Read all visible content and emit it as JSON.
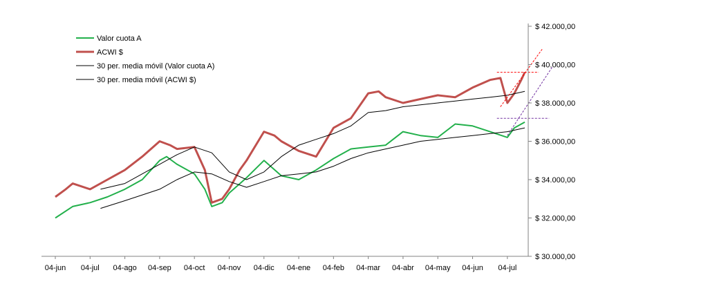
{
  "chart_data": {
    "type": "line",
    "title": "",
    "xlabel": "",
    "ylabel": "",
    "x_tick_labels": [
      "04-jun",
      "04-jul",
      "04-ago",
      "04-sep",
      "04-oct",
      "04-nov",
      "04-dic",
      "04-ene",
      "04-feb",
      "04-mar",
      "04-abr",
      "04-may",
      "04-jun",
      "04-jul"
    ],
    "y_tick_labels": [
      "$ 30.000,00",
      "$ 32.000,00",
      "$ 34.000,00",
      "$ 36.000,00",
      "$ 38.000,00",
      "$ 40.000,00",
      "$ 42.000,00"
    ],
    "y_ticks": [
      30000,
      32000,
      34000,
      36000,
      38000,
      40000,
      42000
    ],
    "ylim": [
      30000,
      42000
    ],
    "xlim": [
      0,
      13.6
    ],
    "y_axis_position": "right",
    "grid": false,
    "legend_position": "top-left",
    "series": [
      {
        "name": "Valor cuota A",
        "color": "#22b04b",
        "style": "line",
        "x": [
          0,
          0.5,
          1,
          1.5,
          2,
          2.5,
          3,
          3.2,
          3.5,
          4,
          4.3,
          4.5,
          4.8,
          5,
          5.5,
          6,
          6.5,
          7,
          7.5,
          8,
          8.5,
          9,
          9.5,
          10,
          10.5,
          11,
          11.5,
          12,
          12.5,
          13,
          13.2,
          13.5
        ],
        "values": [
          32000,
          32600,
          32800,
          33100,
          33500,
          34000,
          35000,
          35200,
          34800,
          34300,
          33500,
          32600,
          32800,
          33300,
          34100,
          35000,
          34200,
          34000,
          34500,
          35100,
          35600,
          35700,
          35800,
          36500,
          36300,
          36200,
          36900,
          36800,
          36500,
          36200,
          36700,
          37000
        ]
      },
      {
        "name": "ACWI $",
        "color": "#c0504d",
        "style": "line",
        "x": [
          0,
          0.3,
          0.5,
          1,
          1.5,
          2,
          2.5,
          3,
          3.3,
          3.5,
          4,
          4.3,
          4.5,
          4.8,
          5,
          5.3,
          5.5,
          6,
          6.3,
          6.5,
          7,
          7.5,
          8,
          8.5,
          9,
          9.3,
          9.5,
          10,
          10.5,
          11,
          11.5,
          12,
          12.5,
          12.8,
          13,
          13.2,
          13.4,
          13.5
        ],
        "values": [
          33100,
          33500,
          33800,
          33500,
          34000,
          34500,
          35200,
          36000,
          35800,
          35600,
          35700,
          34500,
          32800,
          33000,
          33500,
          34500,
          35000,
          36500,
          36300,
          36000,
          35500,
          35200,
          36700,
          37200,
          38500,
          38600,
          38300,
          38000,
          38200,
          38400,
          38300,
          38800,
          39200,
          39300,
          38000,
          38500,
          39200,
          39600
        ]
      },
      {
        "name": "30 per. media móvil (Valor cuota A)",
        "color": "#000000",
        "style": "thin",
        "x": [
          1.3,
          2,
          3,
          3.5,
          4,
          4.5,
          5,
          5.5,
          6,
          6.5,
          7,
          7.5,
          8,
          8.5,
          9,
          9.5,
          10,
          10.5,
          11,
          11.5,
          12,
          12.5,
          13,
          13.5
        ],
        "values": [
          32500,
          32900,
          33500,
          34000,
          34400,
          34300,
          33900,
          33600,
          33900,
          34200,
          34300,
          34400,
          34700,
          35100,
          35400,
          35600,
          35800,
          36000,
          36100,
          36200,
          36300,
          36400,
          36500,
          36700
        ]
      },
      {
        "name": "30 per. media móvil (ACWI $)",
        "color": "#000000",
        "style": "thin",
        "x": [
          1.3,
          2,
          2.5,
          3,
          3.5,
          4,
          4.5,
          5,
          5.5,
          6,
          6.5,
          7,
          7.5,
          8,
          8.5,
          9,
          9.5,
          10,
          10.5,
          11,
          11.5,
          12,
          12.5,
          13,
          13.5
        ],
        "values": [
          33500,
          33800,
          34300,
          34800,
          35300,
          35700,
          35400,
          34400,
          34000,
          34400,
          35200,
          35800,
          36100,
          36400,
          36800,
          37500,
          37600,
          37800,
          37900,
          38000,
          38100,
          38200,
          38300,
          38400,
          38600
        ]
      }
    ],
    "reference_lines": {
      "red_horizontal": {
        "y": 39600,
        "x_start": 12.7,
        "x_end": 13.9,
        "color": "#ff0000"
      },
      "purple_horizontal": {
        "y": 37200,
        "x_start": 12.7,
        "x_end": 14.2,
        "color": "#7030a0"
      },
      "red_trend": {
        "x": [
          12.8,
          14.0
        ],
        "y": [
          37800,
          40800
        ],
        "color": "#ff0000"
      },
      "purple_trend": {
        "x": [
          13.0,
          14.3
        ],
        "y": [
          36300,
          39900
        ],
        "color": "#7030a0"
      }
    }
  }
}
